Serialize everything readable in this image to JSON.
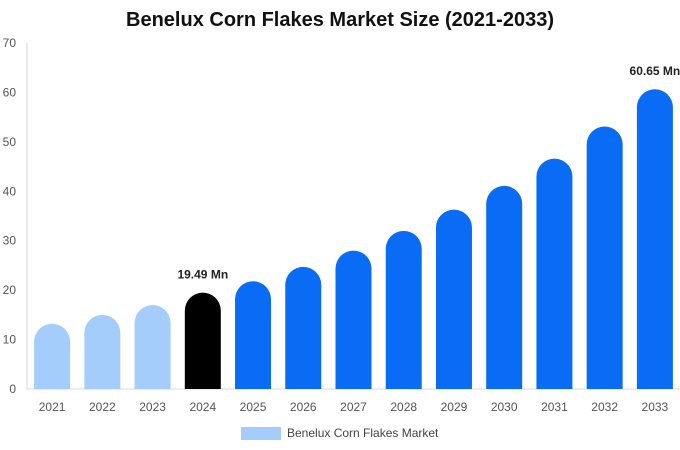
{
  "chart_data": {
    "type": "bar",
    "title": "Benelux Corn Flakes Market Size (2021-2033)",
    "categories": [
      "2021",
      "2022",
      "2023",
      "2024",
      "2025",
      "2026",
      "2027",
      "2028",
      "2029",
      "2030",
      "2031",
      "2032",
      "2033"
    ],
    "series": [
      {
        "name": "Benelux Corn Flakes Market",
        "values": [
          13.2,
          15.0,
          17.0,
          19.49,
          21.8,
          24.7,
          28.0,
          32.0,
          36.3,
          41.1,
          46.6,
          53.1,
          60.65
        ]
      }
    ],
    "bar_colors": [
      "#a4cdfb",
      "#a4cdfb",
      "#a4cdfb",
      "#000000",
      "#0a6cf5",
      "#0a6cf5",
      "#0a6cf5",
      "#0a6cf5",
      "#0a6cf5",
      "#0a6cf5",
      "#0a6cf5",
      "#0a6cf5",
      "#0a6cf5"
    ],
    "data_labels": [
      {
        "index": 3,
        "text": "19.49 Mn"
      },
      {
        "index": 12,
        "text": "60.65 Mn"
      }
    ],
    "yticks": [
      0,
      10,
      20,
      30,
      40,
      50,
      60,
      70
    ],
    "ylim": [
      0,
      70
    ],
    "grid": false,
    "legend_position": "bottom"
  }
}
